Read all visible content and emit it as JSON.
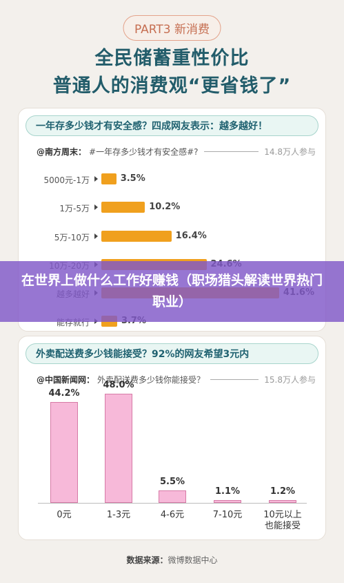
{
  "part_label": "PART3 新消费",
  "title_line1": "全民储蓄重性价比",
  "title_line2": "普通人的消费观“更省钱了”",
  "overlay_title": "在世界上做什么工作好赚钱（职场猎头解读世界热门职业）",
  "footer": {
    "label": "数据来源：",
    "source": "微博数据中心"
  },
  "colors": {
    "accent": "#225c6a",
    "bar_orange": "#f0a01e",
    "bar_pink": "#f7b9d9",
    "overlay": "#8058c8"
  },
  "section1": {
    "heading": "一年存多少钱才有安全感？四成网友表示：越多越好！",
    "source": "@南方周末：",
    "question": "#一年存多少钱才有安全感#?",
    "participants": "14.8万人参与"
  },
  "section2": {
    "heading": "外卖配送费多少钱能接受？92%的网友希望3元内",
    "source": "@中国新闻网：",
    "question": "外卖配送费多少钱你能接受？",
    "participants": "15.8万人参与"
  },
  "chart_data": [
    {
      "type": "bar",
      "orientation": "horizontal",
      "categories": [
        "5000元-1万",
        "1万-5万",
        "5万-10万",
        "10万-20万",
        "越多越好",
        "能存就行"
      ],
      "values": [
        3.5,
        10.2,
        16.4,
        24.6,
        41.6,
        3.7
      ],
      "labels": [
        "3.5%",
        "10.2%",
        "16.4%",
        "24.6%",
        "41.6%",
        "3.7%"
      ]
    },
    {
      "type": "bar",
      "orientation": "vertical",
      "categories": [
        "0元",
        "1-3元",
        "4-6元",
        "7-10元",
        "10元以上\n也能接受"
      ],
      "values": [
        44.2,
        48.0,
        5.5,
        1.1,
        1.2
      ],
      "labels": [
        "44.2%",
        "48.0%",
        "5.5%",
        "1.1%",
        "1.2%"
      ]
    }
  ]
}
